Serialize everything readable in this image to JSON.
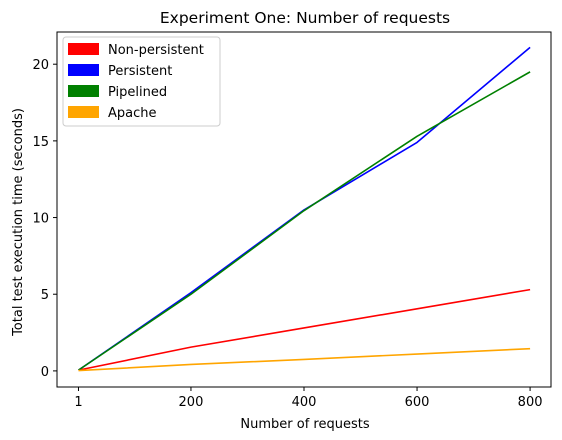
{
  "chart_data": {
    "type": "line",
    "title": "Experiment One: Number of requests",
    "xlabel": "Number of requests",
    "ylabel": "Total test execution time (seconds)",
    "x": [
      1,
      200,
      400,
      600,
      800
    ],
    "x_ticks": [
      1,
      200,
      400,
      600,
      800
    ],
    "y_ticks": [
      0,
      5,
      10,
      15,
      20
    ],
    "xlim": [
      -37,
      837
    ],
    "ylim": [
      -1.05,
      22.1
    ],
    "grid": false,
    "legend_position": "top-left",
    "series": [
      {
        "name": "Non-persistent",
        "color": "#ff0000",
        "values": [
          0.05,
          1.55,
          2.8,
          4.05,
          5.3
        ]
      },
      {
        "name": "Persistent",
        "color": "#0000ff",
        "values": [
          0.05,
          5.1,
          10.5,
          14.9,
          21.1
        ]
      },
      {
        "name": "Pipelined",
        "color": "#008000",
        "values": [
          0.05,
          5.0,
          10.45,
          15.3,
          19.5
        ]
      },
      {
        "name": "Apache",
        "color": "#ffa500",
        "values": [
          0.02,
          0.42,
          0.75,
          1.1,
          1.45
        ]
      }
    ]
  }
}
